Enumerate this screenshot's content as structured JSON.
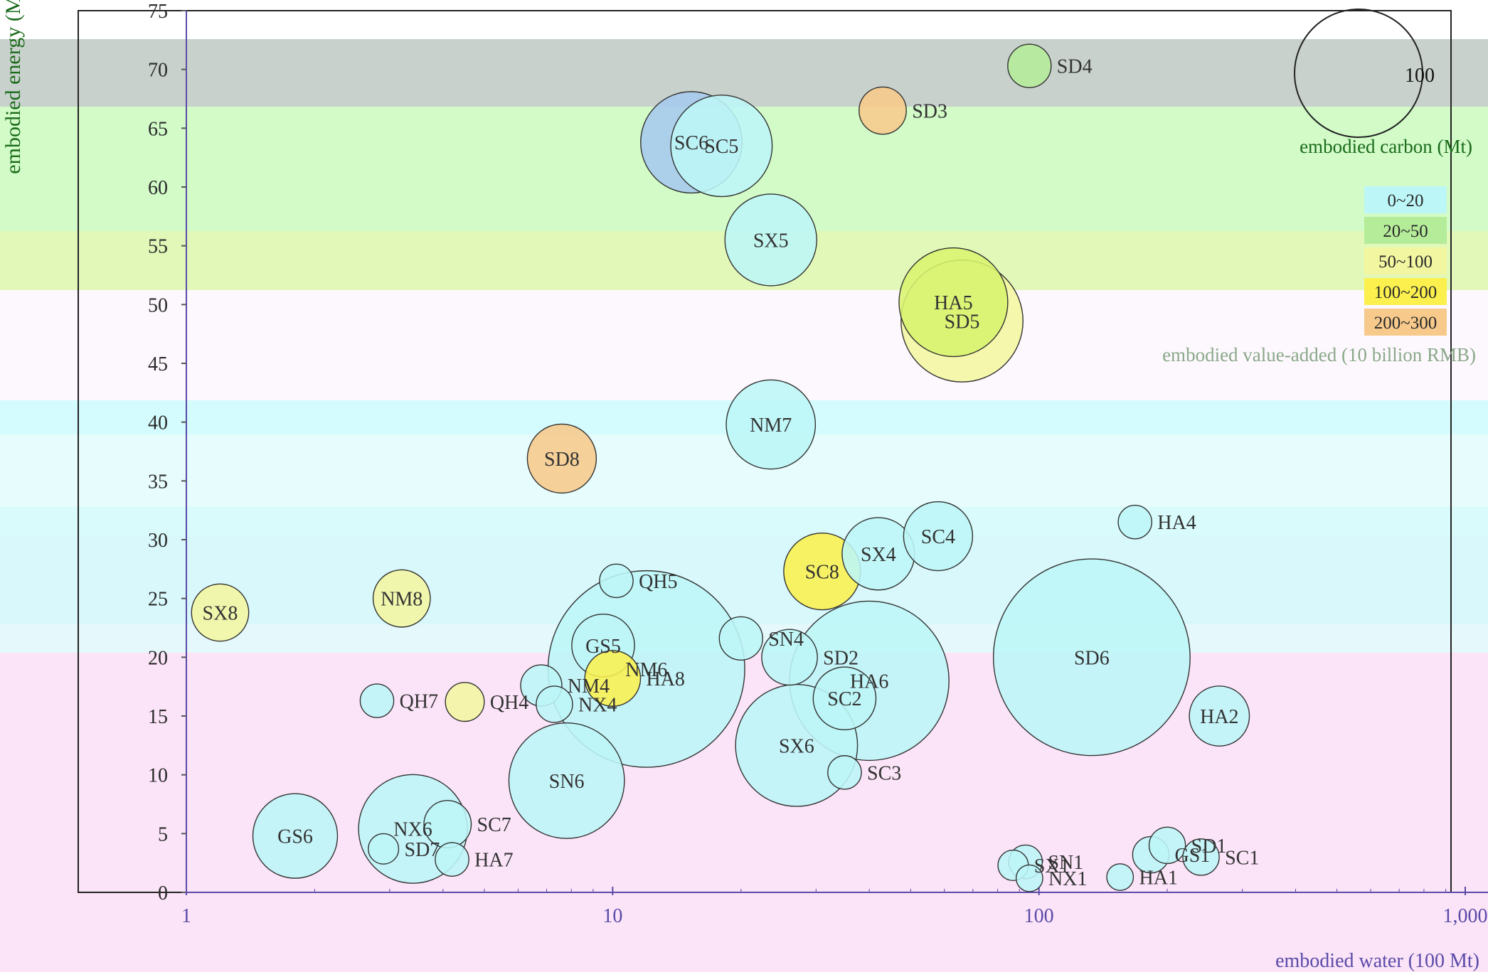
{
  "chart_data": {
    "type": "bubble",
    "x_axis": {
      "label": "embodied water (100 Mt)",
      "scale": "log",
      "range": [
        1,
        1000
      ],
      "ticks": [
        {
          "value": 1,
          "label": "1"
        },
        {
          "value": 10,
          "label": "10"
        },
        {
          "value": 100,
          "label": "100"
        },
        {
          "value": 1000,
          "label": "1,000"
        }
      ]
    },
    "y_axis": {
      "label": "embodied energy (Mt)",
      "range": [
        0,
        75
      ],
      "ticks": [
        {
          "value": 0,
          "label": "0"
        },
        {
          "value": 5,
          "label": "5"
        },
        {
          "value": 10,
          "label": "10"
        },
        {
          "value": 15,
          "label": "15"
        },
        {
          "value": 20,
          "label": "20"
        },
        {
          "value": 25,
          "label": "25"
        },
        {
          "value": 30,
          "label": "30"
        },
        {
          "value": 35,
          "label": "35"
        },
        {
          "value": 40,
          "label": "40"
        },
        {
          "value": 45,
          "label": "45"
        },
        {
          "value": 50,
          "label": "50"
        },
        {
          "value": 55,
          "label": "55"
        },
        {
          "value": 60,
          "label": "60"
        },
        {
          "value": 65,
          "label": "65"
        },
        {
          "value": 70,
          "label": "70"
        },
        {
          "value": 75,
          "label": "75"
        }
      ]
    },
    "size_legend": {
      "value": 100,
      "label": "100",
      "title": "embodied carbon (Mt)"
    },
    "color_legend": {
      "title": "embodied value-added (10 billion RMB)",
      "classes": [
        {
          "label": "0~20",
          "color": "#bdf6f7"
        },
        {
          "label": "20~50",
          "color": "#b5ec9a"
        },
        {
          "label": "50~100",
          "color": "#f2f6a0"
        },
        {
          "label": "100~200",
          "color": "#fbf04e"
        },
        {
          "label": "200~300",
          "color": "#f7c98b"
        }
      ]
    },
    "bubbles": [
      {
        "label": "SD4",
        "x": 95,
        "y": 70.3,
        "carbon": 8,
        "color": "#b5ec9a"
      },
      {
        "label": "SD3",
        "x": 43,
        "y": 66.5,
        "carbon": 10,
        "color": "#f7c98b"
      },
      {
        "label": "SC6",
        "x": 15.3,
        "y": 63.8,
        "carbon": 60,
        "color": "#a6c9ee"
      },
      {
        "label": "SC5",
        "x": 18,
        "y": 63.5,
        "carbon": 60,
        "color": "#bdf6f7"
      },
      {
        "label": "SX5",
        "x": 23.5,
        "y": 55.5,
        "carbon": 48,
        "color": "#bdf6f7"
      },
      {
        "label": "HA5",
        "x": 63,
        "y": 50.2,
        "carbon": 70,
        "color": "#d8f46e"
      },
      {
        "label": "SD5",
        "x": 66,
        "y": 48.6,
        "carbon": 90,
        "color": "#f2f6a0"
      },
      {
        "label": "NM7",
        "x": 23.5,
        "y": 39.8,
        "carbon": 45,
        "color": "#bdf6f7"
      },
      {
        "label": "SD8",
        "x": 7.6,
        "y": 36.9,
        "carbon": 25,
        "color": "#f7c98b"
      },
      {
        "label": "HA4",
        "x": 168,
        "y": 31.5,
        "carbon": 4,
        "color": "#bdf6f7"
      },
      {
        "label": "SC4",
        "x": 58,
        "y": 30.3,
        "carbon": 25,
        "color": "#bdf6f7"
      },
      {
        "label": "SX4",
        "x": 42,
        "y": 28.8,
        "carbon": 28,
        "color": "#bdf6f7"
      },
      {
        "label": "SC8",
        "x": 31,
        "y": 27.3,
        "carbon": 32,
        "color": "#fbf04e"
      },
      {
        "label": "QH5",
        "x": 10.2,
        "y": 26.5,
        "carbon": 4,
        "color": "#bdf6f7"
      },
      {
        "label": "NM8",
        "x": 3.2,
        "y": 25.0,
        "carbon": 16,
        "color": "#f2f6a0"
      },
      {
        "label": "SX8",
        "x": 1.2,
        "y": 23.8,
        "carbon": 16,
        "color": "#f2f6a0"
      },
      {
        "label": "SN4",
        "x": 20,
        "y": 21.6,
        "carbon": 8,
        "color": "#bdf6f7"
      },
      {
        "label": "SD2",
        "x": 26,
        "y": 20.0,
        "carbon": 15,
        "color": "#bdf6f7"
      },
      {
        "label": "SD6",
        "x": 133,
        "y": 20.0,
        "carbon": 250,
        "color": "#bdf6f7"
      },
      {
        "label": "HA6",
        "x": 40,
        "y": 18.0,
        "carbon": 160,
        "color": "#bdf6f7"
      },
      {
        "label": "NM6",
        "x": 12,
        "y": 19.0,
        "carbon": 250,
        "color": "#bdf6f7"
      },
      {
        "label": "GS5",
        "x": 9.5,
        "y": 21.0,
        "carbon": 20,
        "color": "#bdf6f7"
      },
      {
        "label": "NM4",
        "x": 6.8,
        "y": 17.6,
        "carbon": 7,
        "color": "#bdf6f7"
      },
      {
        "label": "HA8",
        "x": 10,
        "y": 18.2,
        "carbon": 15,
        "color": "#fbf04e"
      },
      {
        "label": "NX4",
        "x": 7.3,
        "y": 16.0,
        "carbon": 5,
        "color": "#bdf6f7"
      },
      {
        "label": "SC2",
        "x": 35,
        "y": 16.5,
        "carbon": 20,
        "color": "#bdf6f7"
      },
      {
        "label": "QH4",
        "x": 4.5,
        "y": 16.2,
        "carbon": 6,
        "color": "#f2f6a0"
      },
      {
        "label": "QH7",
        "x": 2.8,
        "y": 16.3,
        "carbon": 4,
        "color": "#bdf6f7"
      },
      {
        "label": "HA2",
        "x": 265,
        "y": 15.0,
        "carbon": 18,
        "color": "#bdf6f7"
      },
      {
        "label": "SX6",
        "x": 27,
        "y": 12.5,
        "carbon": 90,
        "color": "#bdf6f7"
      },
      {
        "label": "SC3",
        "x": 35,
        "y": 10.2,
        "carbon": 4,
        "color": "#bdf6f7"
      },
      {
        "label": "SN6",
        "x": 7.8,
        "y": 9.5,
        "carbon": 80,
        "color": "#bdf6f7"
      },
      {
        "label": "GS6",
        "x": 1.8,
        "y": 4.8,
        "carbon": 40,
        "color": "#bdf6f7"
      },
      {
        "label": "NX6",
        "x": 3.4,
        "y": 5.4,
        "carbon": 70,
        "color": "#bdf6f7"
      },
      {
        "label": "SC7",
        "x": 4.1,
        "y": 5.8,
        "carbon": 10,
        "color": "#bdf6f7"
      },
      {
        "label": "SD7",
        "x": 2.9,
        "y": 3.7,
        "carbon": 3,
        "color": "#bdf6f7"
      },
      {
        "label": "HA7",
        "x": 4.2,
        "y": 2.8,
        "carbon": 4,
        "color": "#bdf6f7"
      },
      {
        "label": "SX1",
        "x": 87,
        "y": 2.3,
        "carbon": 3,
        "color": "#bdf6f7"
      },
      {
        "label": "SN1",
        "x": 93,
        "y": 2.6,
        "carbon": 4,
        "color": "#bdf6f7"
      },
      {
        "label": "NX1",
        "x": 95,
        "y": 1.2,
        "carbon": 2,
        "color": "#bdf6f7"
      },
      {
        "label": "GS1",
        "x": 183,
        "y": 3.2,
        "carbon": 5,
        "color": "#bdf6f7"
      },
      {
        "label": "SD1",
        "x": 200,
        "y": 4.0,
        "carbon": 5,
        "color": "#bdf6f7"
      },
      {
        "label": "HA1",
        "x": 155,
        "y": 1.3,
        "carbon": 2,
        "color": "#bdf6f7"
      },
      {
        "label": "SC1",
        "x": 240,
        "y": 3.0,
        "carbon": 5,
        "color": "#bdf6f7"
      }
    ]
  }
}
